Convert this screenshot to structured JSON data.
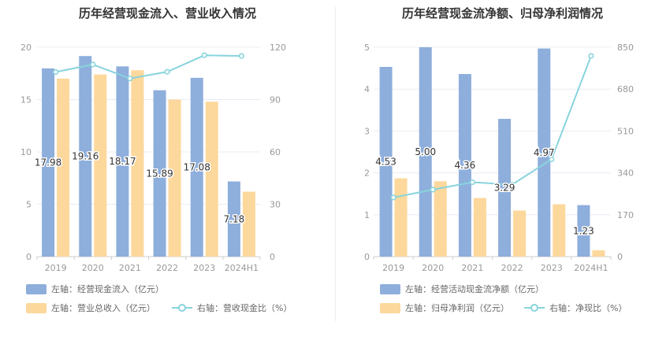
{
  "colors": {
    "left_bar": "#8eaedc",
    "right_bar": "#fdd89c",
    "line": "#88d4dc",
    "axis_text": "#999999",
    "grid": "#e8ecf3",
    "label": "#333333"
  },
  "chart_data": [
    {
      "type": "bar",
      "title": "历年经营现金流入、营业收入情况",
      "categories": [
        "2019",
        "2020",
        "2021",
        "2022",
        "2023",
        "2024H1"
      ],
      "left_axis": {
        "min": 0,
        "max": 20,
        "ticks": [
          "0",
          "5",
          "10",
          "15",
          "20"
        ]
      },
      "right_axis": {
        "min": 0,
        "max": 120,
        "ticks": [
          "0",
          "30",
          "60",
          "90",
          "120"
        ]
      },
      "series": [
        {
          "name": "左轴：经营现金流入（亿元）",
          "kind": "bar",
          "axis": "left",
          "values": [
            17.98,
            19.16,
            18.17,
            15.89,
            17.08,
            7.18
          ],
          "labels": [
            "17.98",
            "19.16",
            "18.17",
            "15.89",
            "17.08",
            "7.18"
          ]
        },
        {
          "name": "左轴：营业总收入（亿元）",
          "kind": "bar",
          "axis": "left",
          "values": [
            17.0,
            17.4,
            17.8,
            15.0,
            14.8,
            6.2
          ]
        },
        {
          "name": "右轴：营收现金比（%）",
          "kind": "line",
          "axis": "right",
          "values": [
            105.8,
            110.1,
            102.1,
            105.9,
            115.4,
            115.0
          ]
        }
      ],
      "grid": true,
      "legend_position": "bottom"
    },
    {
      "type": "bar",
      "title": "历年经营现金流净额、归母净利润情况",
      "categories": [
        "2019",
        "2020",
        "2021",
        "2022",
        "2023",
        "2024H1"
      ],
      "left_axis": {
        "min": 0,
        "max": 5,
        "ticks": [
          "0",
          "1",
          "2",
          "3",
          "4",
          "5"
        ]
      },
      "right_axis": {
        "min": 0,
        "max": 850,
        "ticks": [
          "0",
          "170",
          "340",
          "510",
          "680",
          "850"
        ]
      },
      "series": [
        {
          "name": "左轴：经营活动现金流净额（亿元）",
          "kind": "bar",
          "axis": "left",
          "values": [
            4.53,
            5.0,
            4.36,
            3.29,
            4.97,
            1.23
          ],
          "labels": [
            "4.53",
            "5.00",
            "4.36",
            "3.29",
            "4.97",
            "1.23"
          ]
        },
        {
          "name": "左轴：归母净利润（亿元）",
          "kind": "bar",
          "axis": "left",
          "values": [
            1.87,
            1.8,
            1.4,
            1.1,
            1.25,
            0.15
          ]
        },
        {
          "name": "右轴：净现比（%）",
          "kind": "line",
          "axis": "right",
          "values": [
            240,
            272,
            302,
            292,
            395,
            815
          ]
        }
      ],
      "grid": true,
      "legend_position": "bottom"
    }
  ]
}
